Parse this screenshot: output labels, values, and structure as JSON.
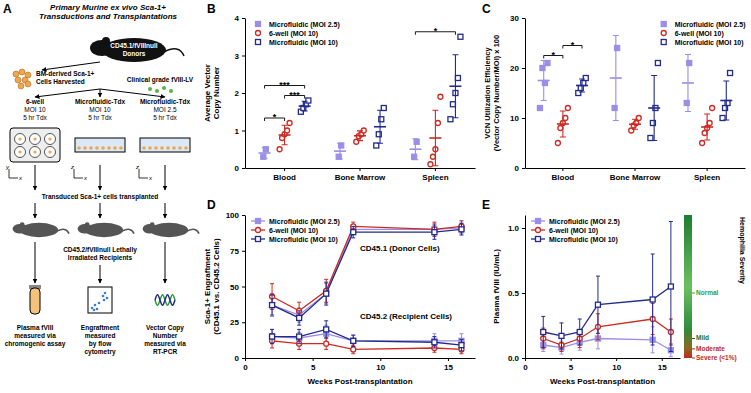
{
  "diagram": {
    "panel": "A",
    "title": [
      "Primary Murine ex vivo Sca-1+",
      "Transductions and Transplantations"
    ],
    "donors": [
      "CD45.1/fVIIInull",
      "Donors"
    ],
    "harvest": [
      "BM-derived Sca-1+",
      "Cells Harvested"
    ],
    "vector": "Clinical grade fVIII-LV",
    "arms": [
      {
        "lines": [
          "6-well",
          "MOI 10",
          "5 hr Tdx"
        ],
        "axes": [
          "y",
          "x"
        ]
      },
      {
        "lines": [
          "Microfluidic-Tdx",
          "MOI 10",
          "5 hr Tdx"
        ],
        "axes": [
          "z",
          "x"
        ]
      },
      {
        "lines": [
          "Microfluidic-Tdx",
          "MOI 2.5",
          "5 hr Tdx"
        ],
        "axes": [
          "z",
          "x"
        ]
      }
    ],
    "transplant": "Transduced Sca-1+ cells transplanted",
    "recipients": [
      "CD45.2/fVIIInull Lethally",
      "Irradiated Recipients"
    ],
    "readouts": [
      [
        "Plasma fVIII",
        "measured via",
        "chromogenic assay"
      ],
      [
        "Engraftment",
        "measured",
        "by flow",
        "cytometry"
      ],
      [
        "Vector Copy",
        "Number",
        "measured via",
        "RT-PCR"
      ]
    ]
  },
  "chart_data": [
    {
      "panel": "B",
      "type": "dot",
      "y_label": [
        "Average Vector",
        "Copy Number"
      ],
      "categories": [
        "Blood",
        "Bone Marrow",
        "Spleen"
      ],
      "ylim": [
        0,
        4
      ],
      "yticks": [
        0,
        1,
        2,
        3,
        4
      ],
      "legend": "upper left",
      "series": [
        {
          "name": "Microfluidic (MOI 2.5)",
          "color": "#9a8ee8",
          "marker": "square",
          "values": [
            0.4,
            0.45,
            0.5
          ],
          "error": [
            0.14,
            0.21,
            0.28
          ],
          "points": [
            [
              0.3,
              0.5
            ],
            [
              0.3,
              0.6
            ],
            [
              0.3,
              0.7
            ]
          ]
        },
        {
          "name": "6-well (MOI 10)",
          "color": "#cc2a22",
          "marker": "open-circle",
          "values": [
            0.88,
            0.86,
            0.8
          ],
          "error": [
            0.26,
            0.13,
            0.74
          ],
          "points": [
            [
              0.5,
              0.8,
              0.9,
              1.0,
              1.2
            ],
            [
              0.7,
              0.85,
              0.9,
              1.0
            ],
            [
              0.1,
              0.3,
              0.5,
              1.2,
              1.9
            ]
          ]
        },
        {
          "name": "Microfluidic (MOI 10)",
          "color": "#232b8a",
          "marker": "open-square",
          "values": [
            1.65,
            1.1,
            2.18
          ],
          "error": [
            0.13,
            0.44,
            0.84
          ],
          "points": [
            [
              1.5,
              1.6,
              1.7,
              1.8
            ],
            [
              0.6,
              0.9,
              1.3,
              1.6
            ],
            [
              1.3,
              1.7,
              2.0,
              2.4,
              3.5
            ]
          ]
        }
      ],
      "significance": [
        {
          "category": "Blood",
          "between": [
            "Microfluidic (MOI 2.5)",
            "6-well (MOI 10)"
          ],
          "text": "*"
        },
        {
          "category": "Blood",
          "between": [
            "6-well (MOI 10)",
            "Microfluidic (MOI 10)"
          ],
          "text": "***"
        },
        {
          "category": "Blood",
          "between": [
            "Microfluidic (MOI 2.5)",
            "Microfluidic (MOI 10)"
          ],
          "text": "***"
        },
        {
          "category": "Spleen",
          "between": [
            "Microfluidic (MOI 2.5)",
            "Microfluidic (MOI 10)"
          ],
          "text": "*"
        }
      ]
    },
    {
      "panel": "C",
      "type": "dot",
      "y_label": [
        "VCN Utilization Efficiency",
        "(Vector Copy Number/MOI) x 100"
      ],
      "categories": [
        "Blood",
        "Bone Marrow",
        "Spleen"
      ],
      "ylim": [
        0,
        30
      ],
      "yticks": [
        0,
        10,
        20,
        30
      ],
      "legend": "upper right",
      "series": [
        {
          "name": "Microfluidic (MOI 2.5)",
          "color": "#9a8ee8",
          "marker": "square",
          "values": [
            17.5,
            18,
            17
          ],
          "error": [
            4,
            8.5,
            5.7
          ],
          "points": [
            [
              12,
              20,
              17,
              21
            ],
            [
              12,
              24
            ],
            [
              13,
              21
            ]
          ]
        },
        {
          "name": "6-well (MOI 10)",
          "color": "#cc2a22",
          "marker": "open-circle",
          "values": [
            8.8,
            8.75,
            8.2
          ],
          "error": [
            2.6,
            1,
            2.6
          ],
          "points": [
            [
              5,
              8,
              9,
              10,
              12
            ],
            [
              7.5,
              8.5,
              9,
              10
            ],
            [
              5,
              7,
              8,
              9,
              12
            ]
          ]
        },
        {
          "name": "Microfluidic (MOI 10)",
          "color": "#232b8a",
          "marker": "open-square",
          "values": [
            16.5,
            12,
            13.5
          ],
          "error": [
            1.3,
            6.5,
            3.9
          ],
          "points": [
            [
              15,
              16,
              17,
              18
            ],
            [
              6,
              9,
              12,
              21
            ],
            [
              10,
              12,
              13,
              19
            ]
          ]
        }
      ],
      "significance": [
        {
          "category": "Blood",
          "between": [
            "Microfluidic (MOI 2.5)",
            "6-well (MOI 10)"
          ],
          "text": "*"
        },
        {
          "category": "Blood",
          "between": [
            "6-well (MOI 10)",
            "Microfluidic (MOI 10)"
          ],
          "text": "*"
        }
      ]
    },
    {
      "panel": "D",
      "type": "line",
      "y_label": [
        "Sca-1+ Engraftment",
        "(CD45.1 vs. CD45.2 Cells)"
      ],
      "x_label": "Weeks Post-transplantation",
      "x": [
        2,
        4,
        6,
        8,
        14,
        16
      ],
      "xlim": [
        0,
        17
      ],
      "xticks": [
        0,
        5,
        10,
        15
      ],
      "ylim": [
        0,
        100
      ],
      "yticks": [
        0,
        25,
        50,
        75,
        100
      ],
      "legend": "upper left",
      "series": [
        {
          "name": "Microfluidic (MOI 2.5)",
          "color": "#9a8ee8",
          "marker": "square",
          "values": [
            37,
            30,
            45,
            90,
            90,
            91
          ],
          "error": [
            8,
            5,
            7,
            3,
            4,
            4
          ],
          "recipient_values": [
            15,
            14,
            17,
            12,
            12,
            12
          ],
          "recipient_error": [
            5,
            4,
            6,
            4,
            5,
            5
          ]
        },
        {
          "name": "6-well (MOI 10)",
          "color": "#cc2a22",
          "marker": "open-circle",
          "values": [
            43,
            33,
            47,
            92,
            90,
            92
          ],
          "error": [
            9,
            6,
            8,
            3,
            5,
            4
          ],
          "recipient_values": [
            12,
            10,
            10,
            6,
            7,
            6
          ],
          "recipient_error": [
            5,
            4,
            4,
            3,
            3,
            3
          ]
        },
        {
          "name": "Microfluidic (MOI 10)",
          "color": "#232b8a",
          "marker": "open-square",
          "values": [
            37,
            28,
            45,
            88,
            88,
            90
          ],
          "error": [
            7,
            5,
            8,
            4,
            5,
            4
          ],
          "recipient_values": [
            15,
            15,
            20,
            12,
            11,
            9
          ],
          "recipient_error": [
            5,
            5,
            6,
            4,
            4,
            4
          ]
        }
      ],
      "annotations": [
        {
          "text": "CD45.1 (Donor Cells)",
          "x": 8.5,
          "y": 75
        },
        {
          "text": "CD45.2 (Recipient Cells)",
          "x": 8.5,
          "y": 27
        }
      ]
    },
    {
      "panel": "E",
      "type": "line",
      "y_label": [
        "Plasma fVIII (IU/mL)"
      ],
      "x_label": "Weeks Post-transplantation",
      "x": [
        2,
        4,
        6,
        8,
        14,
        16
      ],
      "xlim": [
        0,
        17
      ],
      "xticks": [
        0,
        5,
        10,
        15
      ],
      "ylim": [
        0,
        1.1
      ],
      "yticks": [
        {
          "value": 0,
          "label": "0.0"
        },
        {
          "value": 0.5,
          "label": "0.5"
        },
        {
          "value": 1,
          "label": "1.0"
        }
      ],
      "legend": "upper left",
      "series": [
        {
          "name": "Microfluidic (MOI 2.5)",
          "color": "#9a8ee8",
          "marker": "square",
          "values": [
            0.1,
            0.08,
            0.12,
            0.15,
            0.14,
            0.06
          ],
          "error": [
            0.05,
            0.05,
            0.06,
            0.08,
            0.1,
            0.05
          ]
        },
        {
          "name": "6-well (MOI 10)",
          "color": "#cc2a22",
          "marker": "open-circle",
          "values": [
            0.15,
            0.1,
            0.15,
            0.24,
            0.3,
            0.2
          ],
          "error": [
            0.08,
            0.05,
            0.07,
            0.1,
            0.12,
            0.1
          ]
        },
        {
          "name": "Microfluidic (MOI 10)",
          "color": "#232b8a",
          "marker": "open-square",
          "values": [
            0.2,
            0.17,
            0.2,
            0.41,
            0.45,
            0.55
          ],
          "error": [
            0.12,
            0.1,
            0.1,
            0.22,
            0.35,
            0.5
          ]
        }
      ],
      "severity": {
        "title": "Hemophilia Severity",
        "levels": [
          {
            "label": "Normal",
            "value": 0.5,
            "color": "#2e9e3a"
          },
          {
            "label": "Mild",
            "value": 0.15,
            "color": "#1f6e2a"
          },
          {
            "label": "Moderate",
            "value": 0.07,
            "color": "#c0281e"
          },
          {
            "label": "Severe (<1%)",
            "value": 0,
            "color": "#c0281e"
          }
        ]
      }
    }
  ]
}
